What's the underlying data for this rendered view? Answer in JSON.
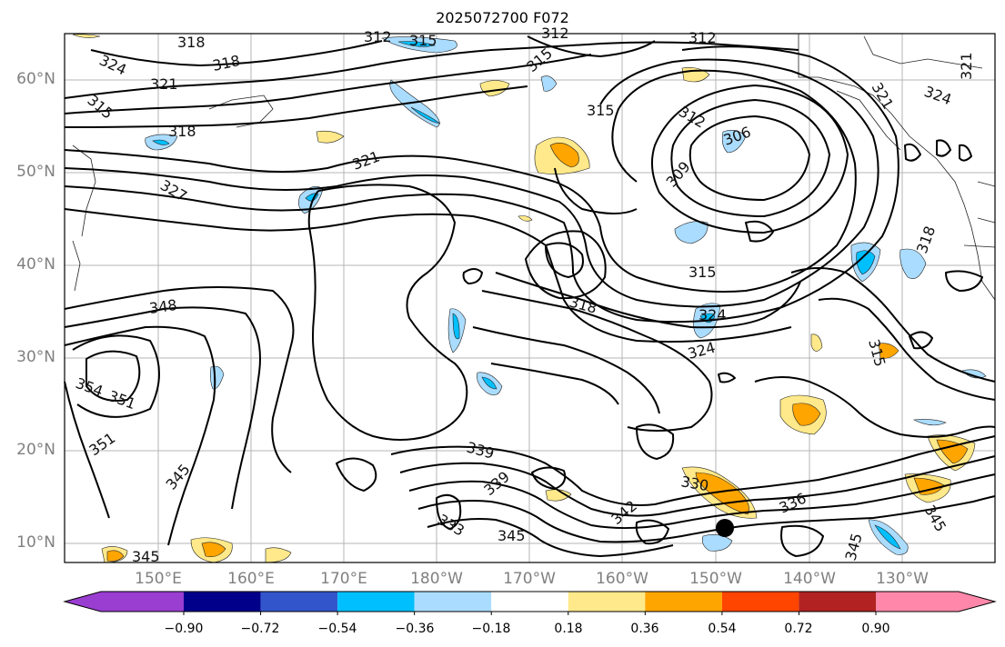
{
  "title": "2025072700 F072",
  "lat_labels": [
    "60°N",
    "50°N",
    "40°N",
    "30°N",
    "20°N",
    "10°N"
  ],
  "lon_labels": [
    "150°E",
    "160°E",
    "170°E",
    "180°W",
    "170°W",
    "160°W",
    "150°W",
    "140°W",
    "130°W"
  ],
  "colorbar": {
    "ticks": [
      "−0.90",
      "−0.72",
      "−0.54",
      "−0.36",
      "−0.18",
      "0.18",
      "0.36",
      "0.54",
      "0.72",
      "0.90"
    ],
    "colors": [
      "#9a3dd1",
      "#00008b",
      "#3355cc",
      "#00bfff",
      "#aadcff",
      "#ffffff",
      "#ffe98a",
      "#ffa500",
      "#ff4500",
      "#b22222",
      "#ff88aa"
    ]
  },
  "contour_labels": [
    "318",
    "324",
    "321",
    "318",
    "315",
    "315",
    "312",
    "312",
    "315",
    "312",
    "321",
    "324",
    "321",
    "315",
    "318",
    "306",
    "309",
    "312",
    "321",
    "327",
    "315",
    "318",
    "348",
    "324",
    "324",
    "315",
    "354",
    "351",
    "351",
    "345",
    "339",
    "339",
    "330",
    "336",
    "345",
    "345",
    "345",
    "342",
    "318",
    "333",
    "345"
  ],
  "colors": {
    "positive": "#ffa500",
    "positive_light": "#ffe98a",
    "negative": "#00bfff",
    "negative_light": "#aadcff"
  }
}
